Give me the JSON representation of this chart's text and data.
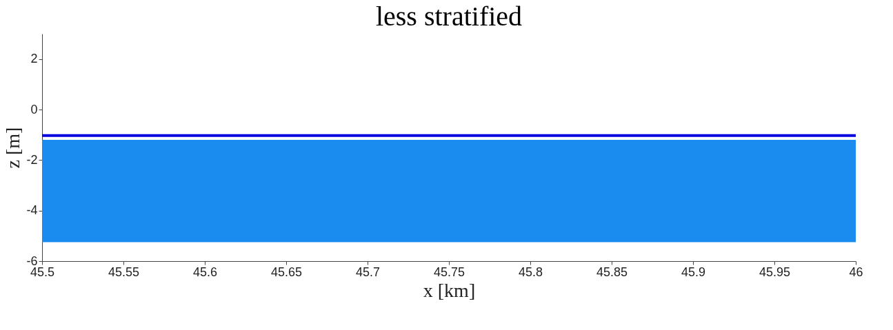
{
  "chart_data": {
    "type": "line",
    "title": "less stratified",
    "xlabel": "x [km]",
    "ylabel": "z [m]",
    "x": [
      45.5,
      46
    ],
    "series": [
      {
        "color": "#0000e0",
        "values": [
          -1.03,
          -1.03
        ]
      }
    ],
    "bands": [
      {
        "axis": "y",
        "from": -5.25,
        "to": -1.2,
        "color": "#1a8cf0"
      }
    ],
    "xlim": [
      45.5,
      46
    ],
    "xticks": [
      45.5,
      45.55,
      45.6,
      45.65,
      45.7,
      45.75,
      45.8,
      45.85,
      45.9,
      45.95,
      46
    ],
    "ylim": [
      -6,
      3
    ],
    "yticks": [
      -6,
      -4,
      -2,
      0,
      2
    ],
    "grid": false
  }
}
